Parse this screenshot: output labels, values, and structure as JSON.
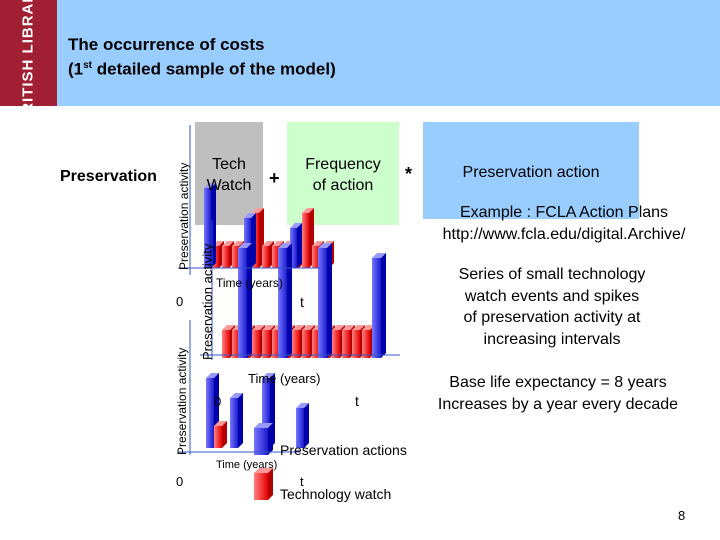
{
  "header": {
    "logo_text": "BRITISH LIBRARY",
    "title_line1": "The occurrence of costs",
    "title_line2_prefix": "(1",
    "title_line2_sup": "st",
    "title_line2_suffix": " detailed sample of the model)"
  },
  "formula": {
    "left_term": "Preservation",
    "tech_line1": "Tech",
    "tech_line2": "Watch",
    "plus": "+",
    "freq_line1": "Frequency",
    "freq_line2": "of action",
    "times": "*",
    "action": "Preservation action"
  },
  "example": {
    "line1": "Example : FCLA Action Plans",
    "line2": "http://www.fcla.edu/digital.Archive/"
  },
  "series": {
    "line1": "Series of small technology",
    "line2": "watch events and spikes",
    "line3": "of preservation activity at",
    "line4": "increasing intervals"
  },
  "life": {
    "line1": "Base life expectancy = 8 years",
    "line2": "Increases by a year every decade"
  },
  "diagram": {
    "ylabel": "Preservation activity",
    "xlabel": "Time (years)",
    "origin": "0",
    "t_label": "t",
    "legend_actions": "Preservation actions",
    "legend_watch": "Technology watch"
  },
  "colors": {
    "brand": "#a01f33",
    "header": "#99ccff",
    "tech_box": "#bfbfbf",
    "freq_box": "#ccffcc",
    "bar_red": "#ff4d4d",
    "bar_blue": "#3333ff",
    "grid_red": "#ff6666",
    "grid_blue": "#6666ff"
  },
  "page_number": "8"
}
